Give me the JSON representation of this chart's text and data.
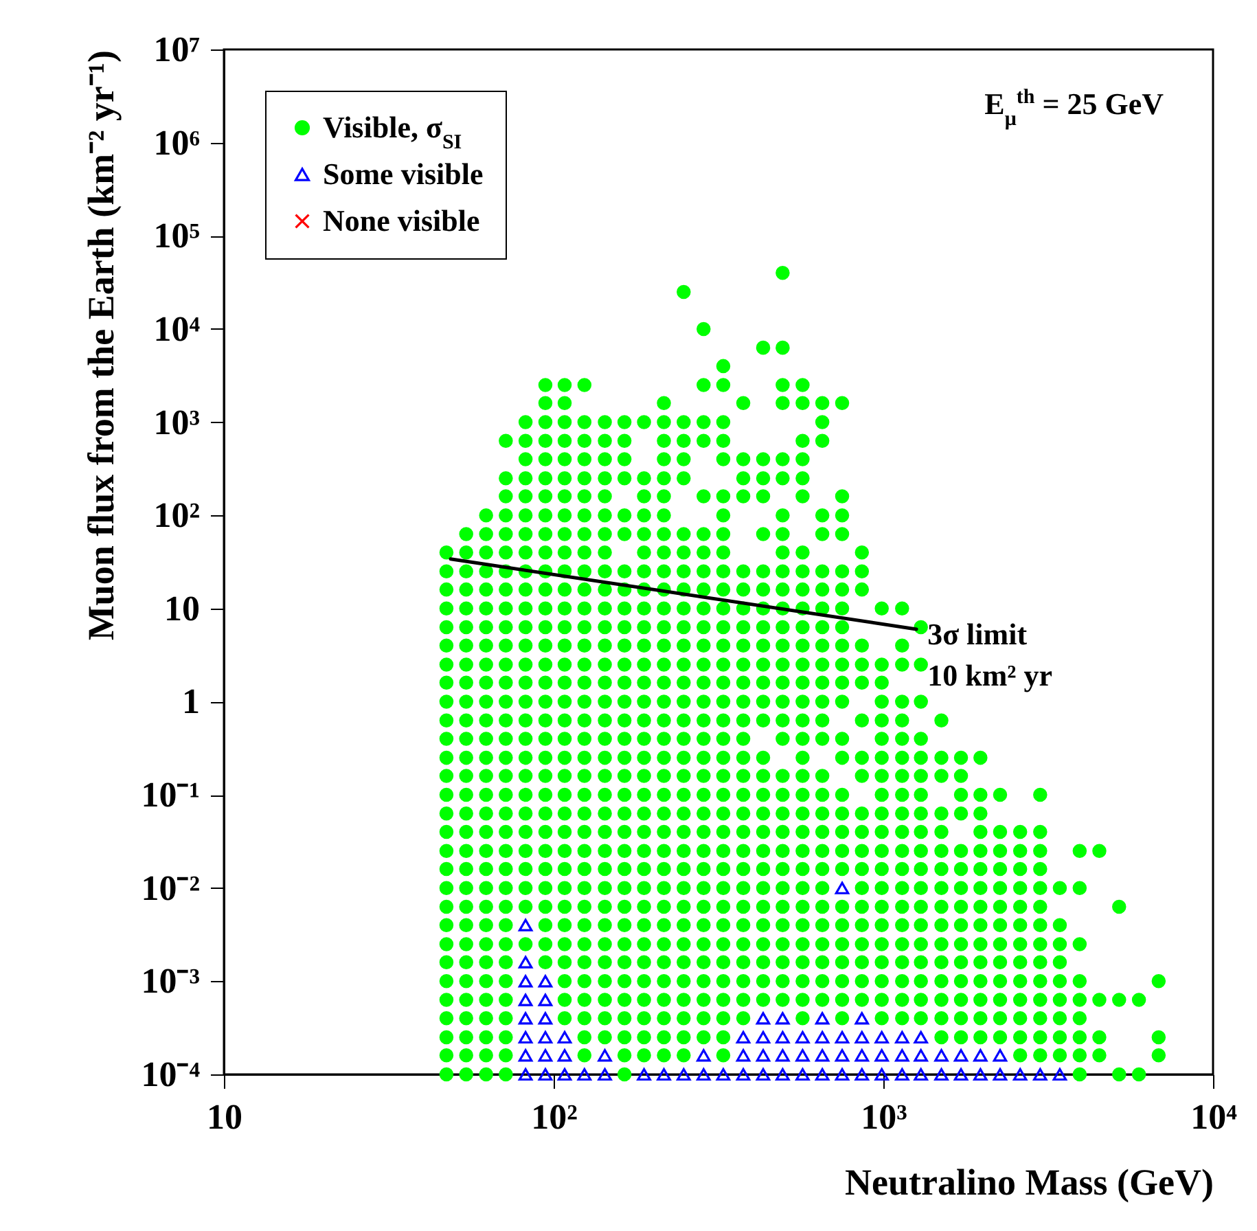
{
  "chart_data": {
    "type": "scatter",
    "xlabel": "Neutralino Mass (GeV)",
    "ylabel": "Muon flux from the Earth (km⁻² yr⁻¹)",
    "annotations": [
      "E$_{μ}$$^{th}$ = 25 GeV"
    ],
    "log": "xy",
    "legend": "top left",
    "xlim": [
      10,
      10000
    ],
    "ylim": [
      0.0001,
      10000000
    ],
    "xticks": [
      10,
      {
        "value": 100,
        "label": "10²"
      },
      {
        "value": 1000,
        "label": "10³"
      },
      {
        "value": 10000,
        "label": "10⁴"
      }
    ],
    "yticks": [
      {
        "value": 0.0001,
        "label": "10⁻⁴"
      },
      {
        "value": 0.001,
        "label": "10⁻³"
      },
      {
        "value": 0.01,
        "label": "10⁻²"
      },
      {
        "value": 0.1,
        "label": "10⁻¹"
      },
      1,
      10,
      {
        "value": 100,
        "label": "10²"
      },
      {
        "value": 1000,
        "label": "10³"
      },
      {
        "value": 10000,
        "label": "10⁴"
      },
      {
        "value": 100000,
        "label": "10⁵"
      },
      {
        "value": 1000000,
        "label": "10⁶"
      },
      {
        "value": 10000000,
        "label": "10⁷"
      }
    ],
    "series": [
      {
        "name": "Visible, σ$_{SI}$",
        "color": "#00ff00",
        "marker": "circle",
        "x": [
          47.3,
          47.3,
          47.3,
          47.3,
          47.3,
          47.3,
          47.3,
          47.3,
          47.3,
          47.3,
          47.3,
          47.3,
          47.3,
          47.3,
          47.3,
          47.3,
          47.3,
          47.3,
          47.3,
          47.3,
          47.3,
          47.3,
          47.3,
          47.3,
          47.3,
          47.3,
          47.3,
          47.3,
          47.3,
          54.3,
          54.3,
          54.3,
          54.3,
          54.3,
          54.3,
          54.3,
          54.3,
          54.3,
          54.3,
          54.3,
          54.3,
          54.3,
          54.3,
          54.3,
          54.3,
          54.3,
          54.3,
          54.3,
          54.3,
          54.3,
          54.3,
          54.3,
          54.3,
          54.3,
          54.3,
          54.3,
          54.3,
          54.3,
          54.3,
          62.4,
          62.4,
          62.4,
          62.4,
          62.4,
          62.4,
          62.4,
          62.4,
          62.4,
          62.4,
          62.4,
          62.4,
          62.4,
          62.4,
          62.4,
          62.4,
          62.4,
          62.4,
          62.4,
          62.4,
          62.4,
          62.4,
          62.4,
          62.4,
          62.4,
          62.4,
          62.4,
          62.4,
          62.4,
          62.4,
          62.4,
          71.6,
          71.6,
          71.6,
          71.6,
          71.6,
          71.6,
          71.6,
          71.6,
          71.6,
          71.6,
          71.6,
          71.6,
          71.6,
          71.6,
          71.6,
          71.6,
          71.6,
          71.6,
          71.6,
          71.6,
          71.6,
          71.6,
          71.6,
          71.6,
          71.6,
          71.6,
          71.6,
          71.6,
          71.6,
          71.6,
          71.6,
          71.6,
          71.6,
          71.6,
          82.2,
          82.2,
          82.2,
          82.2,
          82.2,
          82.2,
          82.2,
          82.2,
          82.2,
          82.2,
          82.2,
          82.2,
          82.2,
          82.2,
          82.2,
          82.2,
          82.2,
          82.2,
          82.2,
          82.2,
          82.2,
          82.2,
          82.2,
          82.2,
          82.2,
          82.2,
          82.2,
          82.2,
          94.4,
          94.4,
          94.4,
          94.4,
          94.4,
          94.4,
          94.4,
          94.4,
          94.4,
          94.4,
          94.4,
          94.4,
          94.4,
          94.4,
          94.4,
          94.4,
          94.4,
          94.4,
          94.4,
          94.4,
          94.4,
          94.4,
          94.4,
          94.4,
          94.4,
          94.4,
          94.4,
          94.4,
          94.4,
          94.4,
          94.4,
          94.4,
          108,
          108,
          108,
          108,
          108,
          108,
          108,
          108,
          108,
          108,
          108,
          108,
          108,
          108,
          108,
          108,
          108,
          108,
          108,
          108,
          108,
          108,
          108,
          108,
          108,
          108,
          108,
          108,
          108,
          108,
          108,
          108,
          108,
          108,
          108,
          124,
          124,
          124,
          124,
          124,
          124,
          124,
          124,
          124,
          124,
          124,
          124,
          124,
          124,
          124,
          124,
          124,
          124,
          124,
          124,
          124,
          124,
          124,
          124,
          124,
          124,
          124,
          124,
          124,
          124,
          124,
          124,
          124,
          124,
          124,
          124,
          143,
          143,
          143,
          143,
          143,
          143,
          143,
          143,
          143,
          143,
          143,
          143,
          143,
          143,
          143,
          143,
          143,
          143,
          143,
          143,
          143,
          143,
          143,
          143,
          143,
          143,
          143,
          143,
          143,
          143,
          143,
          143,
          143,
          143,
          164,
          164,
          164,
          164,
          164,
          164,
          164,
          164,
          164,
          164,
          164,
          164,
          164,
          164,
          164,
          164,
          164,
          164,
          164,
          164,
          164,
          164,
          164,
          164,
          164,
          164,
          164,
          164,
          164,
          164,
          164,
          164,
          164,
          164,
          188,
          188,
          188,
          188,
          188,
          188,
          188,
          188,
          188,
          188,
          188,
          188,
          188,
          188,
          188,
          188,
          188,
          188,
          188,
          188,
          188,
          188,
          188,
          188,
          188,
          188,
          188,
          188,
          188,
          188,
          188,
          188,
          188,
          216,
          216,
          216,
          216,
          216,
          216,
          216,
          216,
          216,
          216,
          216,
          216,
          216,
          216,
          216,
          216,
          216,
          216,
          216,
          216,
          216,
          216,
          216,
          216,
          216,
          216,
          216,
          216,
          216,
          216,
          216,
          216,
          216,
          216,
          216,
          216,
          248,
          248,
          248,
          248,
          248,
          248,
          248,
          248,
          248,
          248,
          248,
          248,
          248,
          248,
          248,
          248,
          248,
          248,
          248,
          248,
          248,
          248,
          248,
          248,
          248,
          248,
          248,
          248,
          248,
          248,
          248,
          248,
          248,
          248,
          285,
          285,
          285,
          285,
          285,
          285,
          285,
          285,
          285,
          285,
          285,
          285,
          285,
          285,
          285,
          285,
          285,
          285,
          285,
          285,
          285,
          285,
          285,
          285,
          285,
          285,
          285,
          285,
          285,
          285,
          285,
          285,
          285,
          327,
          327,
          327,
          327,
          327,
          327,
          327,
          327,
          327,
          327,
          327,
          327,
          327,
          327,
          327,
          327,
          327,
          327,
          327,
          327,
          327,
          327,
          327,
          327,
          327,
          327,
          327,
          327,
          327,
          327,
          327,
          327,
          327,
          327,
          327,
          327,
          376,
          376,
          376,
          376,
          376,
          376,
          376,
          376,
          376,
          376,
          376,
          376,
          376,
          376,
          376,
          376,
          376,
          376,
          376,
          376,
          376,
          376,
          376,
          376,
          376,
          376,
          376,
          376,
          376,
          432,
          432,
          432,
          432,
          432,
          432,
          432,
          432,
          432,
          432,
          432,
          432,
          432,
          432,
          432,
          432,
          432,
          432,
          432,
          432,
          432,
          432,
          432,
          432,
          432,
          432,
          432,
          432,
          495,
          495,
          495,
          495,
          495,
          495,
          495,
          495,
          495,
          495,
          495,
          495,
          495,
          495,
          495,
          495,
          495,
          495,
          495,
          495,
          495,
          495,
          495,
          495,
          495,
          495,
          495,
          495,
          495,
          495,
          495,
          495,
          569,
          569,
          569,
          569,
          569,
          569,
          569,
          569,
          569,
          569,
          569,
          569,
          569,
          569,
          569,
          569,
          569,
          569,
          569,
          569,
          569,
          569,
          569,
          569,
          569,
          569,
          569,
          569,
          569,
          569,
          569,
          569,
          653,
          653,
          653,
          653,
          653,
          653,
          653,
          653,
          653,
          653,
          653,
          653,
          653,
          653,
          653,
          653,
          653,
          653,
          653,
          653,
          653,
          653,
          653,
          653,
          653,
          653,
          653,
          653,
          750,
          750,
          750,
          750,
          750,
          750,
          750,
          750,
          750,
          750,
          750,
          750,
          750,
          750,
          750,
          750,
          750,
          750,
          750,
          750,
          750,
          750,
          750,
          750,
          750,
          750,
          861,
          861,
          861,
          861,
          861,
          861,
          861,
          861,
          861,
          861,
          861,
          861,
          861,
          861,
          861,
          861,
          861,
          861,
          861,
          861,
          989,
          989,
          989,
          989,
          989,
          989,
          989,
          989,
          989,
          989,
          989,
          989,
          989,
          989,
          989,
          989,
          989,
          989,
          989,
          989,
          989,
          1140,
          1140,
          1140,
          1140,
          1140,
          1140,
          1140,
          1140,
          1140,
          1140,
          1140,
          1140,
          1140,
          1140,
          1140,
          1140,
          1140,
          1140,
          1140,
          1140,
          1140,
          1300,
          1300,
          1300,
          1300,
          1300,
          1300,
          1300,
          1300,
          1300,
          1300,
          1300,
          1300,
          1300,
          1300,
          1300,
          1300,
          1300,
          1300,
          1300,
          1500,
          1500,
          1500,
          1500,
          1500,
          1500,
          1500,
          1500,
          1500,
          1500,
          1500,
          1500,
          1500,
          1500,
          1500,
          1500,
          1720,
          1720,
          1720,
          1720,
          1720,
          1720,
          1720,
          1720,
          1720,
          1720,
          1720,
          1720,
          1720,
          1720,
          1720,
          1970,
          1970,
          1970,
          1970,
          1970,
          1970,
          1970,
          1970,
          1970,
          1970,
          1970,
          1970,
          1970,
          1970,
          1970,
          2260,
          2260,
          2260,
          2260,
          2260,
          2260,
          2260,
          2260,
          2260,
          2260,
          2260,
          2260,
          2260,
          2600,
          2600,
          2600,
          2600,
          2600,
          2600,
          2600,
          2600,
          2600,
          2600,
          2600,
          2600,
          2600,
          2990,
          2990,
          2990,
          2990,
          2990,
          2990,
          2990,
          2990,
          2990,
          2990,
          2990,
          2990,
          2990,
          2990,
          3430,
          3430,
          3430,
          3430,
          3430,
          3430,
          3430,
          3430,
          3430,
          3940,
          3940,
          3940,
          3940,
          3940,
          3940,
          3940,
          3940,
          3940,
          4520,
          4520,
          4520,
          4520,
          5190,
          5190,
          5190,
          5960,
          5960,
          6840,
          6840,
          6840
        ],
        "values": [
          0.0001,
          0.00016,
          0.00025,
          0.0004,
          0.00063,
          0.001,
          0.0016,
          0.0025,
          0.004,
          0.0063,
          0.01,
          0.016,
          0.025,
          0.04,
          0.063,
          0.1,
          0.16,
          0.25,
          0.4,
          0.63,
          1,
          1.6,
          2.5,
          4,
          6.3,
          10,
          16,
          25,
          40,
          0.0001,
          0.00016,
          0.00025,
          0.0004,
          0.00063,
          0.001,
          0.0016,
          0.0025,
          0.004,
          0.0063,
          0.01,
          0.016,
          0.025,
          0.04,
          0.063,
          0.1,
          0.16,
          0.25,
          0.4,
          0.63,
          1,
          1.6,
          2.5,
          4,
          6.3,
          10,
          16,
          25,
          40,
          63,
          0.0001,
          0.00016,
          0.00025,
          0.0004,
          0.00063,
          0.001,
          0.0016,
          0.0025,
          0.004,
          0.0063,
          0.01,
          0.016,
          0.025,
          0.04,
          0.063,
          0.1,
          0.16,
          0.25,
          0.4,
          0.63,
          1,
          1.6,
          2.5,
          4,
          6.3,
          10,
          16,
          25,
          40,
          63,
          100,
          0.0001,
          0.00016,
          0.00025,
          0.0004,
          0.00063,
          0.001,
          0.0016,
          0.0025,
          0.004,
          0.0063,
          0.01,
          0.016,
          0.025,
          0.04,
          0.063,
          0.1,
          0.16,
          0.25,
          0.4,
          0.63,
          1,
          1.6,
          2.5,
          4,
          6.3,
          10,
          16,
          25,
          40,
          63,
          100,
          160,
          250,
          630,
          0.0025,
          0.0063,
          0.01,
          0.016,
          0.025,
          0.04,
          0.063,
          0.1,
          0.16,
          0.25,
          0.4,
          0.63,
          1,
          1.6,
          2.5,
          4,
          6.3,
          10,
          16,
          25,
          40,
          63,
          100,
          160,
          250,
          400,
          630,
          1000,
          0.0016,
          0.0025,
          0.004,
          0.0063,
          0.01,
          0.016,
          0.025,
          0.04,
          0.063,
          0.1,
          0.16,
          0.25,
          0.4,
          0.63,
          1,
          1.6,
          2.5,
          4,
          6.3,
          10,
          16,
          25,
          40,
          63,
          100,
          160,
          250,
          400,
          630,
          1000,
          1600,
          2500,
          0.0004,
          0.00063,
          0.001,
          0.0016,
          0.0025,
          0.004,
          0.0063,
          0.01,
          0.016,
          0.025,
          0.04,
          0.063,
          0.1,
          0.16,
          0.25,
          0.4,
          0.63,
          1,
          1.6,
          2.5,
          4,
          6.3,
          10,
          16,
          25,
          40,
          63,
          100,
          160,
          250,
          400,
          630,
          1000,
          1600,
          2500,
          0.00016,
          0.00025,
          0.0004,
          0.00063,
          0.001,
          0.0016,
          0.0025,
          0.004,
          0.0063,
          0.01,
          0.016,
          0.025,
          0.04,
          0.063,
          0.1,
          0.16,
          0.25,
          0.4,
          0.63,
          1,
          1.6,
          2.5,
          4,
          6.3,
          10,
          16,
          25,
          40,
          63,
          100,
          160,
          250,
          400,
          630,
          1000,
          2500,
          0.00025,
          0.0004,
          0.00063,
          0.001,
          0.0016,
          0.0025,
          0.004,
          0.0063,
          0.01,
          0.016,
          0.025,
          0.04,
          0.063,
          0.1,
          0.16,
          0.25,
          0.4,
          0.63,
          1,
          1.6,
          2.5,
          4,
          6.3,
          10,
          16,
          25,
          40,
          63,
          100,
          160,
          250,
          400,
          630,
          1000,
          0.0001,
          0.00016,
          0.00025,
          0.0004,
          0.00063,
          0.001,
          0.0016,
          0.0025,
          0.004,
          0.0063,
          0.01,
          0.016,
          0.025,
          0.04,
          0.063,
          0.1,
          0.16,
          0.25,
          0.4,
          0.63,
          1,
          1.6,
          2.5,
          4,
          6.3,
          10,
          16,
          25,
          63,
          100,
          250,
          400,
          630,
          1000,
          0.00016,
          0.00025,
          0.0004,
          0.00063,
          0.001,
          0.0016,
          0.0025,
          0.004,
          0.0063,
          0.01,
          0.016,
          0.025,
          0.04,
          0.063,
          0.1,
          0.16,
          0.25,
          0.4,
          0.63,
          1,
          1.6,
          2.5,
          4,
          6.3,
          10,
          16,
          25,
          40,
          63,
          100,
          160,
          250,
          1000,
          0.00016,
          0.00025,
          0.0004,
          0.00063,
          0.001,
          0.0016,
          0.0025,
          0.004,
          0.0063,
          0.01,
          0.016,
          0.025,
          0.04,
          0.063,
          0.1,
          0.16,
          0.25,
          0.4,
          0.63,
          1,
          1.6,
          2.5,
          4,
          6.3,
          10,
          16,
          25,
          40,
          63,
          100,
          160,
          250,
          400,
          630,
          1000,
          1600,
          0.00016,
          0.00025,
          0.0004,
          0.00063,
          0.001,
          0.0016,
          0.0025,
          0.004,
          0.0063,
          0.01,
          0.016,
          0.025,
          0.04,
          0.063,
          0.1,
          0.16,
          0.25,
          0.4,
          0.63,
          1,
          1.6,
          2.5,
          4,
          6.3,
          10,
          16,
          25,
          40,
          63,
          250,
          400,
          630,
          1000,
          25000,
          0.00025,
          0.0004,
          0.00063,
          0.001,
          0.0016,
          0.0025,
          0.004,
          0.0063,
          0.01,
          0.016,
          0.025,
          0.04,
          0.063,
          0.1,
          0.16,
          0.25,
          0.4,
          0.63,
          1,
          1.6,
          2.5,
          4,
          6.3,
          10,
          16,
          25,
          40,
          63,
          160,
          630,
          1000,
          2500,
          10000,
          0.00016,
          0.00025,
          0.0004,
          0.00063,
          0.001,
          0.0016,
          0.0025,
          0.004,
          0.0063,
          0.01,
          0.016,
          0.025,
          0.04,
          0.063,
          0.1,
          0.16,
          0.25,
          0.4,
          0.63,
          1,
          1.6,
          2.5,
          4,
          6.3,
          10,
          16,
          25,
          40,
          63,
          100,
          160,
          400,
          630,
          1000,
          2500,
          4000,
          0.0004,
          0.00063,
          0.001,
          0.0016,
          0.0025,
          0.004,
          0.0063,
          0.01,
          0.016,
          0.025,
          0.04,
          0.063,
          0.1,
          0.16,
          0.25,
          0.4,
          0.63,
          1,
          1.6,
          2.5,
          4,
          6.3,
          10,
          16,
          25,
          160,
          250,
          400,
          1600,
          0.00063,
          0.001,
          0.0016,
          0.0025,
          0.004,
          0.0063,
          0.01,
          0.016,
          0.025,
          0.04,
          0.063,
          0.1,
          0.16,
          0.25,
          0.63,
          1,
          1.6,
          2.5,
          4,
          6.3,
          10,
          16,
          25,
          63,
          160,
          250,
          400,
          6300,
          0.00063,
          0.001,
          0.0016,
          0.0025,
          0.004,
          0.0063,
          0.01,
          0.016,
          0.025,
          0.04,
          0.063,
          0.1,
          0.16,
          0.4,
          0.63,
          1,
          1.6,
          2.5,
          4,
          6.3,
          10,
          16,
          25,
          40,
          63,
          100,
          250,
          400,
          1600,
          2500,
          6300,
          40000,
          0.0004,
          0.00063,
          0.001,
          0.0016,
          0.0025,
          0.004,
          0.0063,
          0.01,
          0.016,
          0.025,
          0.04,
          0.063,
          0.1,
          0.16,
          0.25,
          0.4,
          0.63,
          1,
          1.6,
          2.5,
          4,
          6.3,
          10,
          16,
          25,
          40,
          160,
          250,
          400,
          630,
          1600,
          2500,
          0.00063,
          0.001,
          0.0016,
          0.0025,
          0.004,
          0.0063,
          0.01,
          0.016,
          0.025,
          0.04,
          0.063,
          0.1,
          0.16,
          0.4,
          0.63,
          1,
          1.6,
          2.5,
          4,
          6.3,
          10,
          16,
          25,
          63,
          100,
          630,
          1000,
          1600,
          0.0004,
          0.00063,
          0.001,
          0.0016,
          0.0025,
          0.004,
          0.0063,
          0.016,
          0.025,
          0.04,
          0.063,
          0.1,
          0.25,
          0.4,
          1,
          1.6,
          2.5,
          4,
          6.3,
          10,
          16,
          25,
          63,
          100,
          160,
          1600,
          0.00063,
          0.001,
          0.0016,
          0.0025,
          0.004,
          0.0063,
          0.01,
          0.016,
          0.025,
          0.04,
          0.063,
          0.16,
          0.25,
          0.63,
          1.6,
          2.5,
          4,
          16,
          25,
          40,
          0.0004,
          0.00063,
          0.001,
          0.0016,
          0.0025,
          0.004,
          0.0063,
          0.01,
          0.016,
          0.025,
          0.04,
          0.063,
          0.1,
          0.16,
          0.25,
          0.4,
          0.63,
          1,
          1.6,
          2.5,
          10,
          0.0004,
          0.00063,
          0.001,
          0.0016,
          0.0025,
          0.004,
          0.0063,
          0.01,
          0.016,
          0.025,
          0.04,
          0.063,
          0.1,
          0.16,
          0.25,
          0.4,
          0.63,
          1,
          2.5,
          4,
          10,
          0.0004,
          0.00063,
          0.001,
          0.0016,
          0.0025,
          0.004,
          0.0063,
          0.01,
          0.016,
          0.025,
          0.04,
          0.063,
          0.1,
          0.16,
          0.25,
          0.4,
          1,
          2.5,
          6.3,
          0.00025,
          0.0004,
          0.00063,
          0.001,
          0.0016,
          0.0025,
          0.004,
          0.0063,
          0.01,
          0.016,
          0.025,
          0.04,
          0.063,
          0.16,
          0.25,
          0.63,
          0.00025,
          0.0004,
          0.00063,
          0.001,
          0.0016,
          0.0025,
          0.004,
          0.0063,
          0.01,
          0.016,
          0.025,
          0.063,
          0.1,
          0.16,
          0.25,
          0.00025,
          0.0004,
          0.00063,
          0.001,
          0.0016,
          0.0025,
          0.004,
          0.0063,
          0.01,
          0.016,
          0.025,
          0.04,
          0.063,
          0.1,
          0.25,
          0.00025,
          0.0004,
          0.00063,
          0.001,
          0.0016,
          0.0025,
          0.004,
          0.0063,
          0.01,
          0.016,
          0.025,
          0.04,
          0.1,
          0.00016,
          0.00025,
          0.0004,
          0.00063,
          0.001,
          0.0016,
          0.0025,
          0.004,
          0.0063,
          0.01,
          0.016,
          0.025,
          0.04,
          0.00016,
          0.00025,
          0.0004,
          0.00063,
          0.001,
          0.0016,
          0.0025,
          0.004,
          0.0063,
          0.01,
          0.016,
          0.025,
          0.04,
          0.1,
          0.00016,
          0.00025,
          0.0004,
          0.00063,
          0.001,
          0.0016,
          0.0025,
          0.004,
          0.01,
          0.0001,
          0.00016,
          0.00025,
          0.0004,
          0.00063,
          0.001,
          0.0025,
          0.01,
          0.025,
          0.00016,
          0.00025,
          0.00063,
          0.025,
          0.0001,
          0.00063,
          0.0063,
          0.0001,
          0.00063,
          0.00016,
          0.00025,
          0.001
        ]
      },
      {
        "name": "Some visible",
        "color": "#0000ff",
        "marker": "triangle",
        "x": [
          82.2,
          82.2,
          82.2,
          82.2,
          82.2,
          82.2,
          82.2,
          82.2,
          94.4,
          94.4,
          94.4,
          94.4,
          94.4,
          94.4,
          108,
          108,
          108,
          124,
          143,
          143,
          188,
          216,
          248,
          285,
          285,
          327,
          376,
          376,
          376,
          432,
          432,
          432,
          432,
          495,
          495,
          495,
          495,
          569,
          569,
          569,
          653,
          653,
          653,
          653,
          750,
          750,
          750,
          750,
          861,
          861,
          861,
          861,
          989,
          989,
          989,
          1140,
          1140,
          1140,
          1300,
          1300,
          1300,
          1500,
          1500,
          1720,
          1720,
          1970,
          1970,
          2260,
          2260,
          2600,
          2990,
          3430
        ],
        "values": [
          0.0001,
          0.00016,
          0.00025,
          0.0004,
          0.00063,
          0.001,
          0.0016,
          0.004,
          0.0001,
          0.00016,
          0.00025,
          0.0004,
          0.00063,
          0.001,
          0.0001,
          0.00016,
          0.00025,
          0.0001,
          0.0001,
          0.00016,
          0.0001,
          0.0001,
          0.0001,
          0.0001,
          0.00016,
          0.0001,
          0.0001,
          0.00016,
          0.00025,
          0.0001,
          0.00016,
          0.00025,
          0.0004,
          0.0001,
          0.00016,
          0.00025,
          0.0004,
          0.0001,
          0.00016,
          0.00025,
          0.0001,
          0.00016,
          0.00025,
          0.0004,
          0.0001,
          0.00016,
          0.00025,
          0.01,
          0.0001,
          0.00016,
          0.00025,
          0.0004,
          0.0001,
          0.00016,
          0.00025,
          0.0001,
          0.00016,
          0.00025,
          0.0001,
          0.00016,
          0.00025,
          0.0001,
          0.00016,
          0.0001,
          0.00016,
          0.0001,
          0.00016,
          0.0001,
          0.00016,
          0.0001,
          0.0001,
          0.0001
        ]
      },
      {
        "name": "None visible",
        "color": "#ff0000",
        "marker": "cross"
      },
      {
        "type": "line",
        "name": "3σ limit\n10 km² yr",
        "color": "#000000",
        "x": [
          48.7,
          1260
        ],
        "values": [
          34,
          6
        ]
      }
    ]
  }
}
